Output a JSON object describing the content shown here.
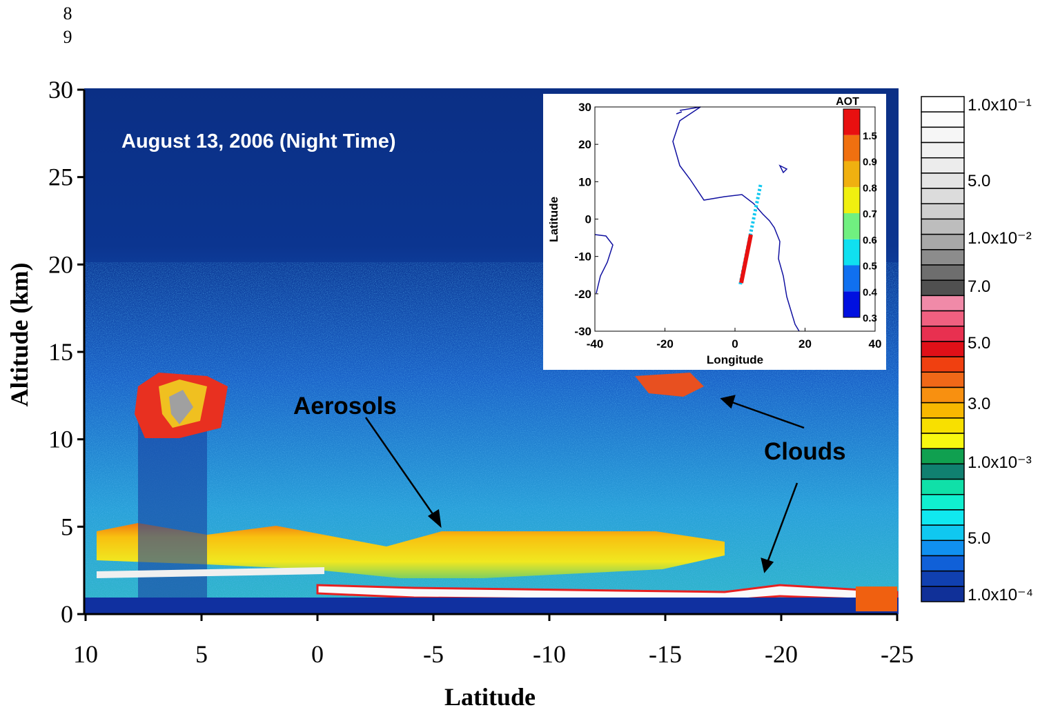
{
  "line_numbers": [
    "8",
    "9"
  ],
  "chart_data": [
    {
      "type": "curtain",
      "annotations": [
        "August 13, 2006 (Night Time)",
        "Aerosols",
        "Clouds"
      ],
      "xlabel": "Latitude",
      "ylabel": "Altitude (km)",
      "xlim": [
        10,
        -25
      ],
      "ylim": [
        0,
        30
      ],
      "xticks": [
        10,
        5,
        0,
        -5,
        -10,
        -15,
        -20,
        -25
      ],
      "yticks": [
        0,
        5,
        10,
        15,
        20,
        25,
        30
      ]
    },
    {
      "type": "map",
      "xlabel": "Longitude",
      "ylabel": "Latitude",
      "xlim": [
        -40,
        40
      ],
      "ylim": [
        -30,
        30
      ],
      "xticks": [
        -40,
        -20,
        0,
        20,
        40
      ],
      "yticks": [
        -30,
        -20,
        -10,
        0,
        10,
        20,
        30
      ],
      "colorbar": {
        "title": "AOT",
        "ticks": [
          0.3,
          0.4,
          0.5,
          0.6,
          0.7,
          0.8,
          0.9,
          1.5
        ],
        "colors": [
          "#0010e0",
          "#1070f0",
          "#10e0f0",
          "#70f080",
          "#f0f010",
          "#f0b010",
          "#f07010",
          "#e81010"
        ]
      }
    },
    {
      "type": "colorbar",
      "labels": [
        "1.0x10⁻¹",
        "5.0",
        "1.0x10⁻²",
        "7.0",
        "5.0",
        "3.0",
        "1.0x10⁻³",
        "5.0",
        "1.0x10⁻⁴"
      ],
      "colors": [
        "#ffffff",
        "#fbfbfb",
        "#f6f6f6",
        "#f1f1f1",
        "#ececec",
        "#e4e4e4",
        "#dcdcdc",
        "#cfcfcf",
        "#bdbdbd",
        "#a8a8a8",
        "#8c8c8c",
        "#6e6e6e",
        "#505050",
        "#f08aa8",
        "#f06080",
        "#e83050",
        "#e01018",
        "#f04010",
        "#f06818",
        "#f89010",
        "#f8b800",
        "#f8e000",
        "#f8f810",
        "#10a050",
        "#108070",
        "#10e0a8",
        "#10f0d0",
        "#10e8f0",
        "#10c8f0",
        "#1090f0",
        "#1060d8",
        "#1040b0",
        "#103098"
      ]
    }
  ]
}
